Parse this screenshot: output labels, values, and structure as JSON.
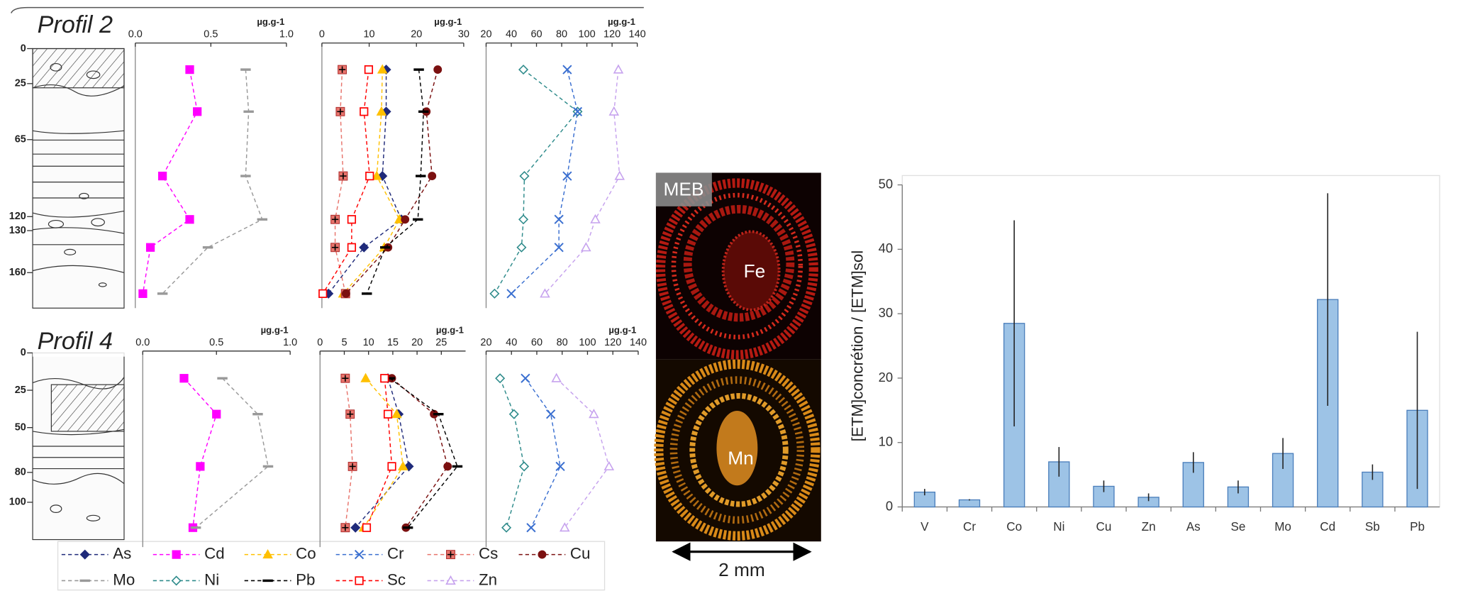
{
  "chart_data": [
    {
      "type": "profile",
      "title": "Profil 2",
      "unit": "µg.g-1",
      "xlim": [
        0,
        1
      ],
      "xticks": [
        {
          "value": 0,
          "label": "0.0"
        },
        {
          "value": 0.5,
          "label": "0.5"
        },
        {
          "value": 1,
          "label": "1.0"
        }
      ],
      "ylim": [
        0,
        180
      ],
      "yticks": [
        0,
        25,
        65,
        120,
        130,
        160
      ],
      "depths": [
        15,
        45,
        91,
        122,
        142,
        175
      ],
      "series": [
        {
          "name": "Cd",
          "color": "#ff00ff",
          "marker": "square",
          "values": [
            0.36,
            0.41,
            0.18,
            0.36,
            0.1,
            0.05
          ]
        },
        {
          "name": "Mo",
          "color": "#999999",
          "marker": "dash",
          "values": [
            0.73,
            0.75,
            0.73,
            0.84,
            0.48,
            0.18
          ]
        }
      ]
    },
    {
      "type": "profile",
      "unit": "µg.g-1",
      "xlim": [
        0,
        30
      ],
      "xticks": [
        0,
        10,
        20,
        30
      ],
      "ylim": [
        0,
        180
      ],
      "depths": [
        15,
        45,
        91,
        122,
        142,
        175
      ],
      "series": [
        {
          "name": "As",
          "color": "#1f2a7a",
          "marker": "diamond",
          "values": [
            13.6,
            13.6,
            12.8,
            16.8,
            8.9,
            1.4
          ]
        },
        {
          "name": "Co",
          "color": "#ffc000",
          "marker": "triangle",
          "values": [
            12.8,
            12.6,
            11.6,
            16.4,
            13.2,
            4.5
          ]
        },
        {
          "name": "Cs",
          "color": "#e8746c",
          "marker": "square-plus",
          "values": [
            4.3,
            3.9,
            4.5,
            2.8,
            2.8,
            5.0
          ]
        },
        {
          "name": "Cu",
          "color": "#7b1010",
          "marker": "circle",
          "values": [
            24.5,
            22.1,
            23.3,
            17.6,
            14.0,
            5.1
          ]
        },
        {
          "name": "Pb",
          "color": "#000000",
          "marker": "dash",
          "values": [
            20.5,
            21.5,
            20.9,
            20.3,
            13.4,
            9.5
          ]
        },
        {
          "name": "Sc",
          "color": "#ff0000",
          "marker": "square-open",
          "values": [
            9.9,
            8.9,
            10.1,
            6.3,
            6.3,
            0.2
          ]
        }
      ]
    },
    {
      "type": "profile",
      "unit": "µg.g-1",
      "xlim": [
        20,
        140
      ],
      "xticks": [
        20,
        40,
        60,
        80,
        100,
        120,
        140
      ],
      "ylim": [
        0,
        180
      ],
      "depths": [
        15,
        45,
        91,
        122,
        142,
        175
      ],
      "series": [
        {
          "name": "Ni",
          "color": "#2e8b8b",
          "marker": "diamond-open",
          "values": [
            49.6,
            92.6,
            50.4,
            49.6,
            48.1,
            26.7
          ]
        },
        {
          "name": "Cr",
          "color": "#3a6fd0",
          "marker": "x",
          "values": [
            84.4,
            92.6,
            84.4,
            77.8,
            77.8,
            40.0
          ]
        },
        {
          "name": "Zn",
          "color": "#c6a2ee",
          "marker": "triangle-open",
          "values": [
            125.0,
            121.5,
            126.0,
            106.7,
            99.3,
            66.7
          ]
        }
      ]
    },
    {
      "type": "profile",
      "title": "Profil 4",
      "unit": "µg.g-1",
      "xlim": [
        0,
        1
      ],
      "xticks": [
        {
          "value": 0,
          "label": "0.0"
        },
        {
          "value": 0.5,
          "label": "0.5"
        },
        {
          "value": 1,
          "label": "1.0"
        }
      ],
      "ylim": [
        0,
        125
      ],
      "yticks": [
        0,
        25,
        50,
        80,
        100
      ],
      "depths": [
        17,
        41,
        76,
        117
      ],
      "series": [
        {
          "name": "Cd",
          "color": "#ff00ff",
          "marker": "square",
          "values": [
            0.28,
            0.5,
            0.39,
            0.34
          ]
        },
        {
          "name": "Mo",
          "color": "#999999",
          "marker": "dash",
          "values": [
            0.54,
            0.78,
            0.85,
            0.36
          ]
        }
      ]
    },
    {
      "type": "profile",
      "unit": "µg.g-1",
      "xlim": [
        0,
        30
      ],
      "xticks": [
        0,
        5,
        10,
        15,
        20,
        25
      ],
      "ylim": [
        0,
        125
      ],
      "depths": [
        17,
        41,
        76,
        117
      ],
      "series": [
        {
          "name": "As",
          "color": "#1f2a7a",
          "marker": "diamond",
          "values": [
            14.0,
            16.2,
            18.3,
            7.3
          ]
        },
        {
          "name": "Co",
          "color": "#ffc000",
          "marker": "triangle",
          "values": [
            9.4,
            15.8,
            17.1,
            9.0
          ]
        },
        {
          "name": "Cs",
          "color": "#e8746c",
          "marker": "square-plus",
          "values": [
            5.2,
            6.2,
            6.7,
            5.2
          ]
        },
        {
          "name": "Cu",
          "color": "#7b1010",
          "marker": "circle",
          "values": [
            14.8,
            23.5,
            26.3,
            17.7
          ]
        },
        {
          "name": "Pb",
          "color": "#000000",
          "marker": "dash",
          "values": [
            14.4,
            24.4,
            28.3,
            18.1
          ]
        },
        {
          "name": "Sc",
          "color": "#ff0000",
          "marker": "square-open",
          "values": [
            13.3,
            14.0,
            14.8,
            9.6
          ]
        }
      ]
    },
    {
      "type": "profile",
      "unit": "µg.g-1",
      "xlim": [
        20,
        140
      ],
      "xticks": [
        20,
        40,
        60,
        80,
        100,
        120,
        140
      ],
      "ylim": [
        0,
        125
      ],
      "depths": [
        17,
        41,
        76,
        117
      ],
      "series": [
        {
          "name": "Ni",
          "color": "#2e8b8b",
          "marker": "diamond-open",
          "values": [
            31,
            42,
            50,
            36
          ]
        },
        {
          "name": "Cr",
          "color": "#3a6fd0",
          "marker": "x",
          "values": [
            51,
            71,
            78.5,
            55.5
          ]
        },
        {
          "name": "Zn",
          "color": "#c6a2ee",
          "marker": "triangle-open",
          "values": [
            75.5,
            105,
            117,
            82
          ]
        }
      ]
    },
    {
      "type": "bar",
      "y_label": "[ETM]concrétion / [ETM]sol",
      "color": "#9dc3e6",
      "edge_color": "#4a7ebb",
      "categories": [
        "V",
        "Cr",
        "Co",
        "Ni",
        "Cu",
        "Zn",
        "As",
        "Se",
        "Mo",
        "Cd",
        "Sb",
        "Pb"
      ],
      "values": [
        2.3,
        1.1,
        28.5,
        7.0,
        3.2,
        1.5,
        6.9,
        3.1,
        8.3,
        32.2,
        5.4,
        15.0
      ],
      "errors": [
        0.5,
        0.1,
        16.0,
        2.3,
        0.9,
        0.6,
        1.6,
        1.0,
        2.4,
        16.5,
        1.2,
        12.2
      ],
      "ylim": [
        0,
        50
      ],
      "yticks": [
        0,
        10,
        20,
        30,
        40,
        50
      ]
    }
  ],
  "legend": {
    "position": "bottom",
    "entries": [
      {
        "name": "As",
        "color": "#1f2a7a",
        "marker": "diamond"
      },
      {
        "name": "Cd",
        "color": "#ff00ff",
        "marker": "square"
      },
      {
        "name": "Co",
        "color": "#ffc000",
        "marker": "triangle"
      },
      {
        "name": "Cr",
        "color": "#3a6fd0",
        "marker": "x"
      },
      {
        "name": "Cs",
        "color": "#e8746c",
        "marker": "square-plus"
      },
      {
        "name": "Cu",
        "color": "#7b1010",
        "marker": "circle"
      },
      {
        "name": "Mo",
        "color": "#999999",
        "marker": "dash"
      },
      {
        "name": "Ni",
        "color": "#2e8b8b",
        "marker": "diamond-open"
      },
      {
        "name": "Pb",
        "color": "#000000",
        "marker": "dash"
      },
      {
        "name": "Sc",
        "color": "#ff0000",
        "marker": "square-open"
      },
      {
        "name": "Zn",
        "color": "#c6a2ee",
        "marker": "triangle-open"
      }
    ]
  },
  "image_panel": {
    "label": "MEB",
    "top_label": "Fe",
    "bottom_label": "Mn",
    "scale_bar": "2 mm"
  }
}
